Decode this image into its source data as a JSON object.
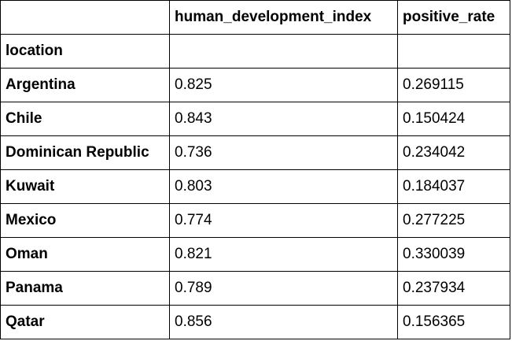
{
  "table": {
    "columns": [
      "",
      "human_development_index",
      "positive_rate"
    ],
    "index_name": "location",
    "rows": [
      {
        "location": "Argentina",
        "human_development_index": "0.825",
        "positive_rate": "0.269115"
      },
      {
        "location": "Chile",
        "human_development_index": "0.843",
        "positive_rate": "0.150424"
      },
      {
        "location": "Dominican Republic",
        "human_development_index": "0.736",
        "positive_rate": "0.234042"
      },
      {
        "location": "Kuwait",
        "human_development_index": "0.803",
        "positive_rate": "0.184037"
      },
      {
        "location": "Mexico",
        "human_development_index": "0.774",
        "positive_rate": "0.277225"
      },
      {
        "location": "Oman",
        "human_development_index": "0.821",
        "positive_rate": "0.330039"
      },
      {
        "location": "Panama",
        "human_development_index": "0.789",
        "positive_rate": "0.237934"
      },
      {
        "location": "Qatar",
        "human_development_index": "0.856",
        "positive_rate": "0.156365"
      }
    ]
  }
}
